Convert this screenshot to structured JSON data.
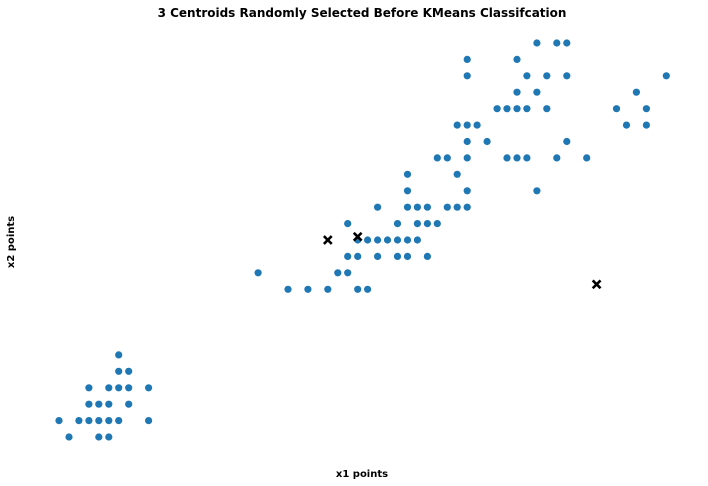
{
  "chart_data": {
    "type": "scatter",
    "title": "3 Centroids Randomly Selected Before KMeans Classifcation",
    "xlabel": "x1 points",
    "ylabel": "x2 points",
    "xlim": [
      0.8,
      7.1
    ],
    "ylim": [
      0.0,
      2.6
    ],
    "grid": false,
    "axes_visible": false,
    "point_color": "#1f77b4",
    "centroid_color": "#000000",
    "series": [
      {
        "marker": "circle",
        "points": [
          [
            1.0,
            0.2
          ],
          [
            1.1,
            0.1
          ],
          [
            1.2,
            0.2
          ],
          [
            1.3,
            0.2
          ],
          [
            1.3,
            0.3
          ],
          [
            1.3,
            0.4
          ],
          [
            1.4,
            0.2
          ],
          [
            1.4,
            0.3
          ],
          [
            1.4,
            0.1
          ],
          [
            1.5,
            0.2
          ],
          [
            1.5,
            0.4
          ],
          [
            1.5,
            0.1
          ],
          [
            1.5,
            0.3
          ],
          [
            1.6,
            0.2
          ],
          [
            1.6,
            0.4
          ],
          [
            1.6,
            0.6
          ],
          [
            1.6,
            0.5
          ],
          [
            1.7,
            0.4
          ],
          [
            1.7,
            0.3
          ],
          [
            1.7,
            0.5
          ],
          [
            1.9,
            0.2
          ],
          [
            1.9,
            0.4
          ],
          [
            3.0,
            1.1
          ],
          [
            3.3,
            1.0
          ],
          [
            3.5,
            1.0
          ],
          [
            3.7,
            1.0
          ],
          [
            3.8,
            1.1
          ],
          [
            3.9,
            1.1
          ],
          [
            3.9,
            1.2
          ],
          [
            3.9,
            1.4
          ],
          [
            4.0,
            1.0
          ],
          [
            4.0,
            1.2
          ],
          [
            4.0,
            1.3
          ],
          [
            4.1,
            1.0
          ],
          [
            4.1,
            1.3
          ],
          [
            4.2,
            1.2
          ],
          [
            4.2,
            1.3
          ],
          [
            4.2,
            1.5
          ],
          [
            4.3,
            1.3
          ],
          [
            4.4,
            1.2
          ],
          [
            4.4,
            1.3
          ],
          [
            4.4,
            1.4
          ],
          [
            4.5,
            1.2
          ],
          [
            4.5,
            1.3
          ],
          [
            4.5,
            1.5
          ],
          [
            4.5,
            1.6
          ],
          [
            4.5,
            1.7
          ],
          [
            4.6,
            1.3
          ],
          [
            4.6,
            1.4
          ],
          [
            4.6,
            1.5
          ],
          [
            4.7,
            1.2
          ],
          [
            4.7,
            1.4
          ],
          [
            4.7,
            1.5
          ],
          [
            4.8,
            1.4
          ],
          [
            4.8,
            1.8
          ],
          [
            4.9,
            1.5
          ],
          [
            4.9,
            1.8
          ],
          [
            5.0,
            1.5
          ],
          [
            5.0,
            1.7
          ],
          [
            5.0,
            2.0
          ],
          [
            5.1,
            1.5
          ],
          [
            5.1,
            1.6
          ],
          [
            5.1,
            1.8
          ],
          [
            5.1,
            1.9
          ],
          [
            5.1,
            2.0
          ],
          [
            5.1,
            2.3
          ],
          [
            5.1,
            2.4
          ],
          [
            5.2,
            2.0
          ],
          [
            5.3,
            1.9
          ],
          [
            5.4,
            2.1
          ],
          [
            5.5,
            1.8
          ],
          [
            5.5,
            2.1
          ],
          [
            5.6,
            1.8
          ],
          [
            5.6,
            2.1
          ],
          [
            5.6,
            2.2
          ],
          [
            5.6,
            2.4
          ],
          [
            5.7,
            1.8
          ],
          [
            5.7,
            2.1
          ],
          [
            5.7,
            2.3
          ],
          [
            5.8,
            1.6
          ],
          [
            5.8,
            2.2
          ],
          [
            5.8,
            2.5
          ],
          [
            5.9,
            2.1
          ],
          [
            5.9,
            2.3
          ],
          [
            6.0,
            1.8
          ],
          [
            6.0,
            2.5
          ],
          [
            6.1,
            1.9
          ],
          [
            6.1,
            2.3
          ],
          [
            6.1,
            2.5
          ],
          [
            6.3,
            1.8
          ],
          [
            6.6,
            2.1
          ],
          [
            6.7,
            2.0
          ],
          [
            6.8,
            2.2
          ],
          [
            6.9,
            2.0
          ],
          [
            6.9,
            2.1
          ],
          [
            7.1,
            2.3
          ]
        ]
      },
      {
        "marker": "x",
        "points": [
          [
            3.7,
            1.3
          ],
          [
            4.0,
            1.32
          ],
          [
            6.4,
            1.03
          ]
        ]
      }
    ]
  }
}
